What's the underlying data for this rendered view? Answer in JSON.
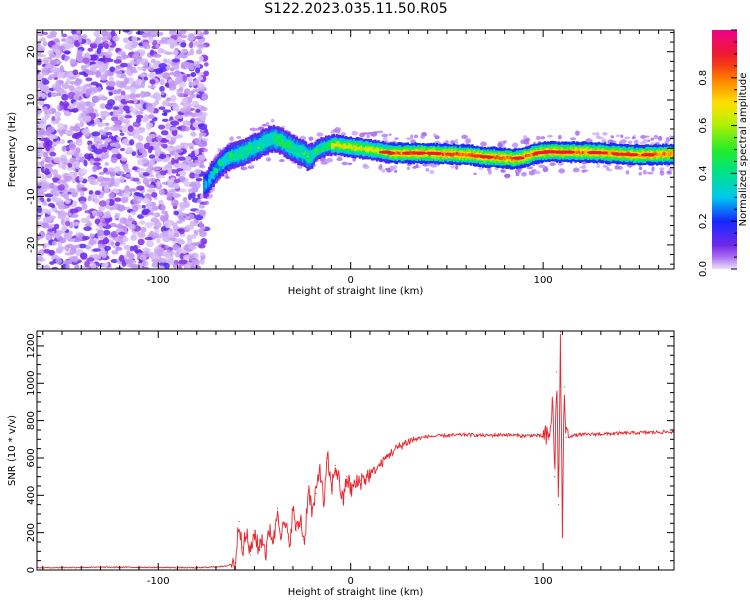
{
  "title": "S122.2023.035.11.50.R05",
  "chart_data": [
    {
      "type": "heatmap",
      "xlabel": "Height of straight line (km)",
      "ylabel": "Frequency (Hz)",
      "xlim": [
        -163,
        168
      ],
      "ylim": [
        -25,
        24.5
      ],
      "x_ticks": [
        -100,
        0,
        100
      ],
      "y_ticks": [
        -20,
        -10,
        0,
        10,
        20
      ],
      "colorbar": {
        "label": "Normalized spectral amplitude",
        "range": [
          0,
          1
        ],
        "ticks": [
          0.0,
          0.2,
          0.4,
          0.6,
          0.8
        ]
      },
      "dominant_frequency_track": {
        "x": [
          -75,
          -72,
          -68,
          -64,
          -60,
          -56,
          -52,
          -48,
          -44,
          -40,
          -36,
          -32,
          -28,
          -24,
          -22,
          -20,
          -18,
          -16,
          -12,
          -8,
          -4,
          0,
          5,
          10,
          15,
          20,
          30,
          40,
          50,
          60,
          70,
          80,
          85,
          90,
          95,
          100,
          103,
          110,
          120,
          130,
          140,
          150,
          160,
          168
        ],
        "y": [
          -7.5,
          -5.5,
          -3.5,
          -2,
          -1.5,
          -1,
          0,
          0.5,
          1.5,
          2,
          1.5,
          0.5,
          -0.5,
          -1,
          -2,
          -1.5,
          -0.5,
          0,
          0.5,
          0.7,
          0.5,
          0.3,
          0,
          -0.3,
          -0.5,
          -1,
          -1,
          -1,
          -1.2,
          -1.3,
          -1.8,
          -2,
          -2.2,
          -1.8,
          -1.2,
          -0.8,
          -0.7,
          -0.8,
          -0.8,
          -0.9,
          -1.2,
          -1.4,
          -1.3,
          -1.2
        ]
      },
      "noise_region_x": [
        -163,
        -75
      ]
    },
    {
      "type": "line",
      "xlabel": "Height of straight line (km)",
      "ylabel": "SNR (10 * v/v)",
      "xlim": [
        -163,
        168
      ],
      "ylim": [
        0,
        1280
      ],
      "x_ticks": [
        -100,
        0,
        100
      ],
      "y_ticks": [
        0,
        200,
        400,
        600,
        800,
        1000,
        1200
      ],
      "series": [
        {
          "color": "#e8262e",
          "x": [
            -163,
            -140,
            -120,
            -100,
            -80,
            -65,
            -60,
            -58,
            -56,
            -54,
            -52,
            -50,
            -48,
            -46,
            -44,
            -42,
            -40,
            -38,
            -36,
            -34,
            -32,
            -30,
            -28,
            -26,
            -24,
            -22,
            -20,
            -18,
            -16,
            -14,
            -12,
            -10,
            -8,
            -6,
            -4,
            -2,
            0,
            5,
            10,
            15,
            20,
            25,
            30,
            35,
            40,
            50,
            60,
            70,
            80,
            90,
            95,
            100,
            103,
            105,
            106,
            107,
            108,
            109,
            110,
            111,
            112,
            115,
            120,
            130,
            140,
            150,
            160,
            168
          ],
          "y": [
            12,
            14,
            15,
            14,
            12,
            20,
            40,
            260,
            120,
            190,
            80,
            210,
            110,
            180,
            90,
            230,
            150,
            330,
            190,
            250,
            130,
            320,
            210,
            280,
            140,
            450,
            300,
            410,
            560,
            350,
            600,
            430,
            560,
            480,
            360,
            500,
            430,
            480,
            510,
            560,
            620,
            660,
            690,
            705,
            715,
            720,
            725,
            720,
            725,
            718,
            722,
            715,
            700,
            900,
            500,
            1060,
            350,
            1275,
            200,
            980,
            710,
            720,
            725,
            728,
            732,
            735,
            738,
            740
          ]
        }
      ]
    }
  ]
}
